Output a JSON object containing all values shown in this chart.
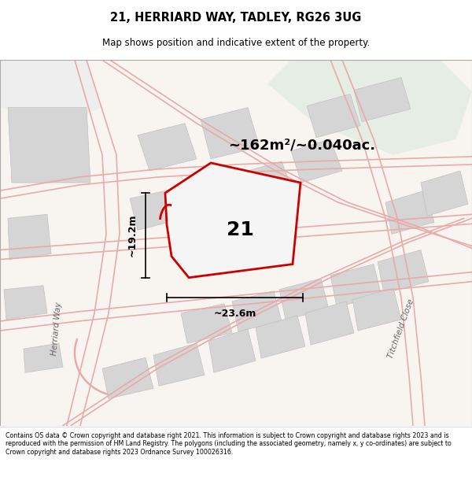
{
  "title_line1": "21, HERRIARD WAY, TADLEY, RG26 3UG",
  "title_line2": "Map shows position and indicative extent of the property.",
  "area_text": "~162m²/~0.040ac.",
  "label_number": "21",
  "dim_width": "~23.6m",
  "dim_height": "~19.2m",
  "footer_text": "Contains OS data © Crown copyright and database right 2021. This information is subject to Crown copyright and database rights 2023 and is reproduced with the permission of HM Land Registry. The polygons (including the associated geometry, namely x, y co-ordinates) are subject to Crown copyright and database rights 2023 Ordnance Survey 100026316.",
  "map_bg": "#f7f4f0",
  "plot_stroke": "#cc0000",
  "road_color": "#e8b0b0",
  "building_fill": "#d8d8d8",
  "green_fill": "#e8ede8"
}
